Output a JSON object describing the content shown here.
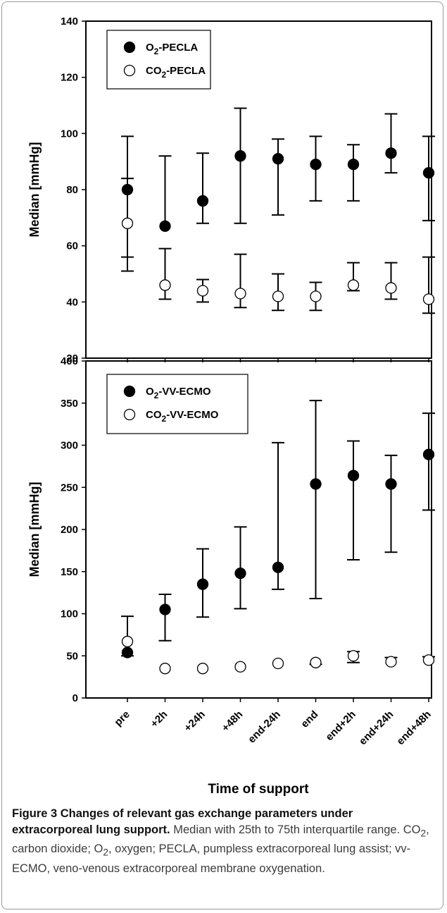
{
  "chart_data": [
    {
      "type": "scatter",
      "panel": "top",
      "categories": [
        "pre",
        "+2h",
        "+24h",
        "+48h",
        "end-24h",
        "end",
        "end+2h",
        "end+24h",
        "end+48h"
      ],
      "ylabel": "Median [mmHg]",
      "ylim": [
        20,
        140
      ],
      "yticks": [
        20,
        40,
        60,
        80,
        100,
        120,
        140
      ],
      "grid": false,
      "legend_position": "top-left",
      "series": [
        {
          "name": "O2-PECLA",
          "legend_main": "O",
          "legend_sub": "2",
          "legend_suffix": "-PECLA",
          "marker": "filled-circle",
          "values": [
            80,
            67,
            76,
            92,
            91,
            89,
            89,
            93,
            86
          ],
          "lower": [
            56,
            null,
            68,
            68,
            71,
            76,
            76,
            86,
            69
          ],
          "upper": [
            99,
            92,
            93,
            109,
            98,
            99,
            96,
            107,
            99
          ]
        },
        {
          "name": "CO2-PECLA",
          "legend_main": "CO",
          "legend_sub": "2",
          "legend_suffix": "-PECLA",
          "marker": "open-circle",
          "values": [
            68,
            46,
            44,
            43,
            42,
            42,
            46,
            45,
            41
          ],
          "lower": [
            51,
            41,
            40,
            38,
            37,
            37,
            44,
            41,
            36
          ],
          "upper": [
            84,
            59,
            48,
            57,
            50,
            47,
            54,
            54,
            56
          ]
        }
      ]
    },
    {
      "type": "scatter",
      "panel": "bottom",
      "categories": [
        "pre",
        "+2h",
        "+24h",
        "+48h",
        "end-24h",
        "end",
        "end+2h",
        "end+24h",
        "end+48h"
      ],
      "xlabel": "Time of support",
      "ylabel": "Median [mmHg]",
      "ylim": [
        0,
        400
      ],
      "yticks": [
        0,
        50,
        100,
        150,
        200,
        250,
        300,
        350,
        400
      ],
      "grid": false,
      "legend_position": "top-left",
      "series": [
        {
          "name": "O2-VV-ECMO",
          "legend_main": "O",
          "legend_sub": "2",
          "legend_suffix": "-VV-ECMO",
          "marker": "filled-circle",
          "values": [
            54,
            105,
            135,
            148,
            155,
            254,
            264,
            254,
            289
          ],
          "lower": [
            50,
            68,
            96,
            106,
            129,
            118,
            164,
            173,
            223
          ],
          "upper": [
            null,
            123,
            177,
            203,
            303,
            353,
            305,
            288,
            338
          ]
        },
        {
          "name": "CO2-VV-ECMO",
          "legend_main": "CO",
          "legend_sub": "2",
          "legend_suffix": "-VV-ECMO",
          "marker": "open-circle",
          "values": [
            67,
            35,
            35,
            37,
            41,
            42,
            50,
            43,
            45
          ],
          "lower": [
            null,
            null,
            null,
            null,
            null,
            40,
            42,
            null,
            null
          ],
          "upper": [
            97,
            null,
            null,
            null,
            null,
            null,
            55,
            48,
            49
          ]
        }
      ]
    }
  ],
  "caption": {
    "bold_lead": "Figure 3 Changes of relevant gas exchange parameters under extracorporeal lung support",
    "bold_period": ".",
    "text_1": " Median with 25th to 75th interquartile range. CO",
    "sub_1": "2",
    "text_2": ", carbon dioxide; O",
    "sub_2": "2",
    "text_3": ", oxygen; PECLA, pumpless extracorporeal lung assist; vv-ECMO, veno-venous extracorporeal membrane oxygenation."
  }
}
